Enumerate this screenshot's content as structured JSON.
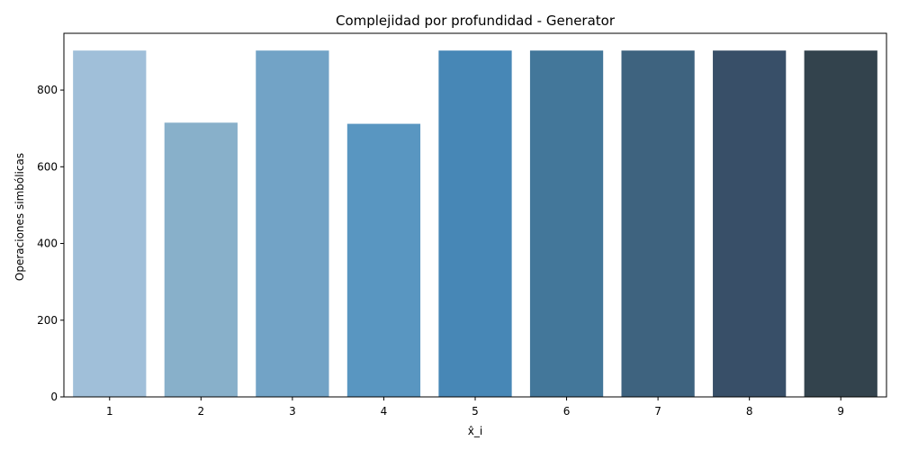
{
  "chart_data": {
    "type": "bar",
    "title": "Complejidad por profundidad - Generator",
    "xlabel": "x̂_i",
    "ylabel": "Operaciones simbólicas",
    "categories": [
      "1",
      "2",
      "3",
      "4",
      "5",
      "6",
      "7",
      "8",
      "9"
    ],
    "values": [
      903,
      715,
      903,
      712,
      903,
      903,
      903,
      903,
      903
    ],
    "ylim": [
      0,
      948
    ],
    "yticks": [
      0,
      200,
      400,
      600,
      800
    ],
    "grid": false,
    "colors": [
      "#a0bfd9",
      "#88b0ca",
      "#72a3c6",
      "#5996c1",
      "#4787b6",
      "#43779a",
      "#3e637f",
      "#384f68",
      "#33434d"
    ]
  }
}
